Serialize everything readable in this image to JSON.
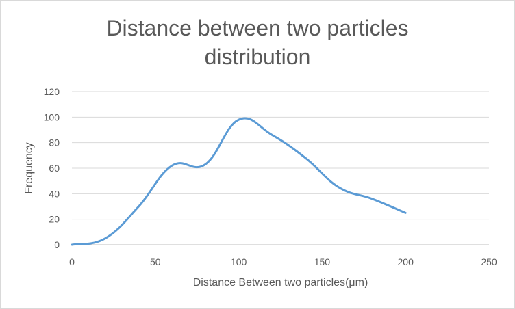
{
  "chart_data": {
    "type": "line",
    "title_lines": [
      "Distance between two particles",
      "distribution"
    ],
    "xlabel": "Distance Between two particles(μm)",
    "ylabel": "Frequency",
    "xlim": [
      0,
      250
    ],
    "ylim": [
      0,
      120
    ],
    "x_ticks": [
      0,
      50,
      100,
      150,
      200,
      250
    ],
    "y_ticks": [
      0,
      20,
      40,
      60,
      80,
      100,
      120
    ],
    "grid": true,
    "legend": "none",
    "series": [
      {
        "color": "#5b9bd5",
        "smooth": true,
        "x": [
          0,
          20,
          40,
          60,
          80,
          100,
          120,
          140,
          160,
          180,
          200
        ],
        "y": [
          0,
          5,
          30,
          62,
          63,
          98,
          86,
          68,
          45,
          36,
          25
        ]
      }
    ]
  }
}
